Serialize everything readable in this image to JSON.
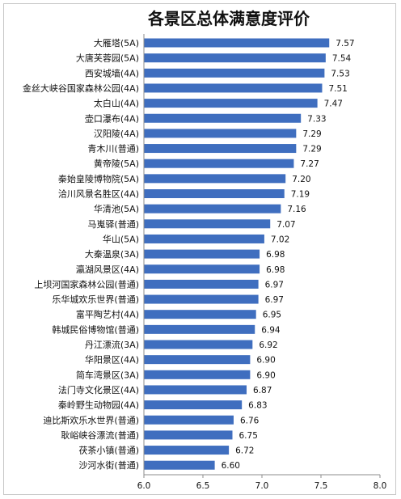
{
  "chart_data": {
    "type": "bar",
    "orientation": "horizontal",
    "title": "各景区总体满意度评价",
    "categories": [
      "大雁塔(5A)",
      "大唐芙蓉园(5A)",
      "西安城墙(4A)",
      "金丝大峡谷国家森林公园(4A)",
      "太白山(4A)",
      "壶口瀑布(4A)",
      "汉阳陵(4A)",
      "青木川(普通)",
      "黄帝陵(5A)",
      "秦始皇陵博物院(5A)",
      "洽川风景名胜区(4A)",
      "华清池(5A)",
      "马嵬驿(普通)",
      "华山(5A)",
      "大秦温泉(3A)",
      "瀛湖风景区(4A)",
      "上坝河国家森林公园(普通)",
      "乐华城欢乐世界(普通)",
      "富平陶艺村(4A)",
      "韩城民俗博物馆(普通)",
      "丹江漂流(3A)",
      "华阳景区(4A)",
      "简车湾景区(3A)",
      "法门寺文化景区(4A)",
      "秦岭野生动物园(4A)",
      "迪比斯欢乐水世界(普通)",
      "耿峪峡谷漂流(普通)",
      "茯茶小镇(普通)",
      "沙河水街(普通)"
    ],
    "values": [
      7.57,
      7.54,
      7.53,
      7.51,
      7.47,
      7.33,
      7.29,
      7.29,
      7.27,
      7.2,
      7.19,
      7.16,
      7.07,
      7.02,
      6.98,
      6.98,
      6.97,
      6.97,
      6.95,
      6.94,
      6.92,
      6.9,
      6.9,
      6.87,
      6.83,
      6.76,
      6.75,
      6.72,
      6.6
    ],
    "value_labels": [
      "7.57",
      "7.54",
      "7.53",
      "7.51",
      "7.47",
      "7.33",
      "7.29",
      "7.29",
      "7.27",
      "7.20",
      "7.19",
      "7.16",
      "7.07",
      "7.02",
      "6.98",
      "6.98",
      "6.97",
      "6.97",
      "6.95",
      "6.94",
      "6.92",
      "6.90",
      "6.90",
      "6.87",
      "6.83",
      "6.76",
      "6.75",
      "6.72",
      "6.60"
    ],
    "xlim": [
      6.0,
      8.0
    ],
    "xticks": [
      "6.0",
      "6.5",
      "7.0",
      "7.5",
      "8.0"
    ],
    "grid": false,
    "legend": "none",
    "bar_color": "#3f6ebf"
  }
}
